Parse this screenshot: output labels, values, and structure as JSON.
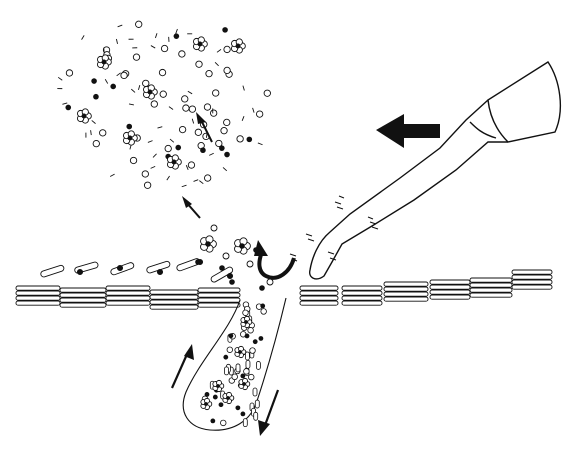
{
  "figure": {
    "type": "schematic-diagram",
    "style": "black line art on white",
    "colors": {
      "ink": "#111111",
      "background": "#ffffff"
    },
    "elements": [
      "cleaning-nozzle",
      "flow-direction-arrow",
      "dispersed-particle-cloud",
      "tile-layer",
      "cavity-funnel",
      "upward-flow-arrow",
      "downward-flow-arrow",
      "curved-uplift-arrow"
    ]
  }
}
